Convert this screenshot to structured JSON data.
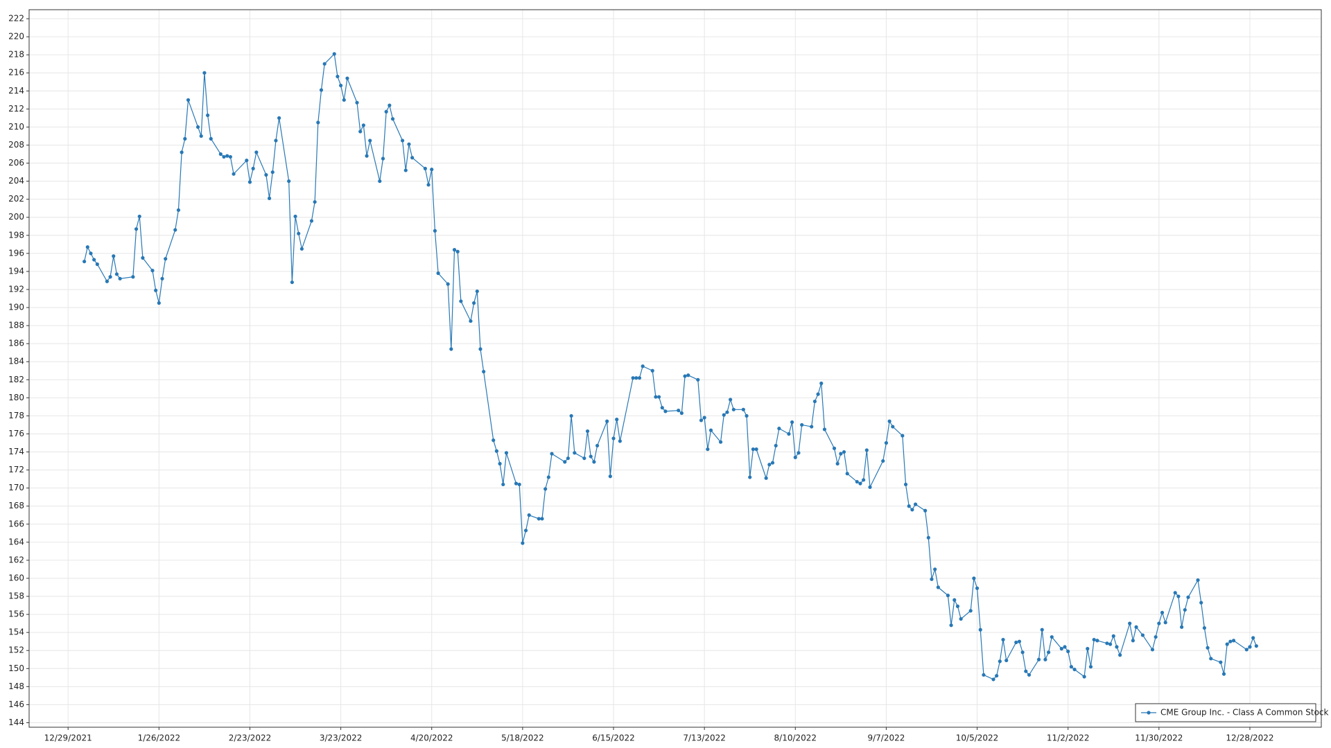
{
  "chart_data": {
    "type": "line",
    "x": [
      "1/3/2022",
      "1/4/2022",
      "1/5/2022",
      "1/6/2022",
      "1/7/2022",
      "1/10/2022",
      "1/11/2022",
      "1/12/2022",
      "1/13/2022",
      "1/14/2022",
      "1/18/2022",
      "1/19/2022",
      "1/20/2022",
      "1/21/2022",
      "1/24/2022",
      "1/25/2022",
      "1/26/2022",
      "1/27/2022",
      "1/28/2022",
      "1/31/2022",
      "2/1/2022",
      "2/2/2022",
      "2/3/2022",
      "2/4/2022",
      "2/7/2022",
      "2/8/2022",
      "2/9/2022",
      "2/10/2022",
      "2/11/2022",
      "2/14/2022",
      "2/15/2022",
      "2/16/2022",
      "2/17/2022",
      "2/18/2022",
      "2/22/2022",
      "2/23/2022",
      "2/24/2022",
      "2/25/2022",
      "2/28/2022",
      "3/1/2022",
      "3/2/2022",
      "3/3/2022",
      "3/4/2022",
      "3/7/2022",
      "3/8/2022",
      "3/9/2022",
      "3/10/2022",
      "3/11/2022",
      "3/14/2022",
      "3/15/2022",
      "3/16/2022",
      "3/17/2022",
      "3/18/2022",
      "3/21/2022",
      "3/22/2022",
      "3/23/2022",
      "3/24/2022",
      "3/25/2022",
      "3/28/2022",
      "3/29/2022",
      "3/30/2022",
      "3/31/2022",
      "4/1/2022",
      "4/4/2022",
      "4/5/2022",
      "4/6/2022",
      "4/7/2022",
      "4/8/2022",
      "4/11/2022",
      "4/12/2022",
      "4/13/2022",
      "4/14/2022",
      "4/18/2022",
      "4/19/2022",
      "4/20/2022",
      "4/21/2022",
      "4/22/2022",
      "4/25/2022",
      "4/26/2022",
      "4/27/2022",
      "4/28/2022",
      "4/29/2022",
      "5/2/2022",
      "5/3/2022",
      "5/4/2022",
      "5/5/2022",
      "5/6/2022",
      "5/9/2022",
      "5/10/2022",
      "5/11/2022",
      "5/12/2022",
      "5/13/2022",
      "5/16/2022",
      "5/17/2022",
      "5/18/2022",
      "5/19/2022",
      "5/20/2022",
      "5/23/2022",
      "5/24/2022",
      "5/25/2022",
      "5/26/2022",
      "5/27/2022",
      "5/31/2022",
      "6/1/2022",
      "6/2/2022",
      "6/3/2022",
      "6/6/2022",
      "6/7/2022",
      "6/8/2022",
      "6/9/2022",
      "6/10/2022",
      "6/13/2022",
      "6/14/2022",
      "6/15/2022",
      "6/16/2022",
      "6/17/2022",
      "6/21/2022",
      "6/22/2022",
      "6/23/2022",
      "6/24/2022",
      "6/27/2022",
      "6/28/2022",
      "6/29/2022",
      "6/30/2022",
      "7/1/2022",
      "7/5/2022",
      "7/6/2022",
      "7/7/2022",
      "7/8/2022",
      "7/11/2022",
      "7/12/2022",
      "7/13/2022",
      "7/14/2022",
      "7/15/2022",
      "7/18/2022",
      "7/19/2022",
      "7/20/2022",
      "7/21/2022",
      "7/22/2022",
      "7/25/2022",
      "7/26/2022",
      "7/27/2022",
      "7/28/2022",
      "7/29/2022",
      "8/1/2022",
      "8/2/2022",
      "8/3/2022",
      "8/4/2022",
      "8/5/2022",
      "8/8/2022",
      "8/9/2022",
      "8/10/2022",
      "8/11/2022",
      "8/12/2022",
      "8/15/2022",
      "8/16/2022",
      "8/17/2022",
      "8/18/2022",
      "8/19/2022",
      "8/22/2022",
      "8/23/2022",
      "8/24/2022",
      "8/25/2022",
      "8/26/2022",
      "8/29/2022",
      "8/30/2022",
      "8/31/2022",
      "9/1/2022",
      "9/2/2022",
      "9/6/2022",
      "9/7/2022",
      "9/8/2022",
      "9/9/2022",
      "9/12/2022",
      "9/13/2022",
      "9/14/2022",
      "9/15/2022",
      "9/16/2022",
      "9/19/2022",
      "9/20/2022",
      "9/21/2022",
      "9/22/2022",
      "9/23/2022",
      "9/26/2022",
      "9/27/2022",
      "9/28/2022",
      "9/29/2022",
      "9/30/2022",
      "10/3/2022",
      "10/4/2022",
      "10/5/2022",
      "10/6/2022",
      "10/7/2022",
      "10/10/2022",
      "10/11/2022",
      "10/12/2022",
      "10/13/2022",
      "10/14/2022",
      "10/17/2022",
      "10/18/2022",
      "10/19/2022",
      "10/20/2022",
      "10/21/2022",
      "10/24/2022",
      "10/25/2022",
      "10/26/2022",
      "10/27/2022",
      "10/28/2022",
      "10/31/2022",
      "11/1/2022",
      "11/2/2022",
      "11/3/2022",
      "11/4/2022",
      "11/7/2022",
      "11/8/2022",
      "11/9/2022",
      "11/10/2022",
      "11/11/2022",
      "11/14/2022",
      "11/15/2022",
      "11/16/2022",
      "11/17/2022",
      "11/18/2022",
      "11/21/2022",
      "11/22/2022",
      "11/23/2022",
      "11/25/2022",
      "11/28/2022",
      "11/29/2022",
      "11/30/2022",
      "12/1/2022",
      "12/2/2022",
      "12/5/2022",
      "12/6/2022",
      "12/7/2022",
      "12/8/2022",
      "12/9/2022",
      "12/12/2022",
      "12/13/2022",
      "12/14/2022",
      "12/15/2022",
      "12/16/2022",
      "12/19/2022",
      "12/20/2022",
      "12/21/2022",
      "12/22/2022",
      "12/23/2022",
      "12/27/2022",
      "12/28/2022",
      "12/29/2022",
      "12/30/2022"
    ],
    "series": [
      {
        "name": "CME Group Inc. - Class A Common Stock",
        "color": "#2878b5",
        "values": [
          195.1,
          196.7,
          196.0,
          195.3,
          194.8,
          192.9,
          193.4,
          195.7,
          193.7,
          193.2,
          193.4,
          198.7,
          200.1,
          195.5,
          194.1,
          191.9,
          190.5,
          193.2,
          195.4,
          198.6,
          200.8,
          207.2,
          208.7,
          213.0,
          210.0,
          209.0,
          216.0,
          211.3,
          208.7,
          207.0,
          206.7,
          206.8,
          206.7,
          204.8,
          206.3,
          203.9,
          205.4,
          207.2,
          204.7,
          202.1,
          205.0,
          208.5,
          211.0,
          204.0,
          192.8,
          200.1,
          198.2,
          196.5,
          199.6,
          201.7,
          210.5,
          214.1,
          217.0,
          218.1,
          215.6,
          214.6,
          213.0,
          215.4,
          212.7,
          209.5,
          210.2,
          206.8,
          208.5,
          204.0,
          206.5,
          211.7,
          212.4,
          210.9,
          208.5,
          205.2,
          208.1,
          206.6,
          205.4,
          203.6,
          205.3,
          198.5,
          193.8,
          192.6,
          185.4,
          196.4,
          196.2,
          190.7,
          188.5,
          190.5,
          191.8,
          185.4,
          182.9,
          175.3,
          174.1,
          172.7,
          170.4,
          173.9,
          170.5,
          170.4,
          163.9,
          165.3,
          167.0,
          166.6,
          166.6,
          169.9,
          171.2,
          173.8,
          172.9,
          173.3,
          178.0,
          173.9,
          173.3,
          176.3,
          173.5,
          172.9,
          174.7,
          177.4,
          171.3,
          175.5,
          177.6,
          175.2,
          182.2,
          182.2,
          182.2,
          183.5,
          183.0,
          180.1,
          180.1,
          178.9,
          178.5,
          178.6,
          178.3,
          182.4,
          182.5,
          182.0,
          177.5,
          177.8,
          174.3,
          176.4,
          175.1,
          178.1,
          178.4,
          179.8,
          178.7,
          178.7,
          178.0,
          171.2,
          174.3,
          174.3,
          171.1,
          172.6,
          172.8,
          174.7,
          176.6,
          176.0,
          177.3,
          173.4,
          173.9,
          177.0,
          176.8,
          179.6,
          180.4,
          181.6,
          176.5,
          174.4,
          172.7,
          173.8,
          174.0,
          171.6,
          170.7,
          170.5,
          170.9,
          174.2,
          170.1,
          173.0,
          175.0,
          177.4,
          176.8,
          175.8,
          170.4,
          168.0,
          167.6,
          168.2,
          167.5,
          164.5,
          159.9,
          161.0,
          159.0,
          158.1,
          154.8,
          157.6,
          156.9,
          155.5,
          156.4,
          160.0,
          158.9,
          154.3,
          149.3,
          148.8,
          149.2,
          150.8,
          153.2,
          150.9,
          152.9,
          153.0,
          151.8,
          149.7,
          149.3,
          151.0,
          154.3,
          151.0,
          151.8,
          153.5,
          152.2,
          152.4,
          151.9,
          150.2,
          149.9,
          149.1,
          152.2,
          150.2,
          153.2,
          153.1,
          152.8,
          152.7,
          153.6,
          152.4,
          151.5,
          155.0,
          153.1,
          154.6,
          153.7,
          152.1,
          153.5,
          155.0,
          156.2,
          155.1,
          158.4,
          158.0,
          154.6,
          156.5,
          157.9,
          159.8,
          157.3,
          154.5,
          152.3,
          151.1,
          150.7,
          149.4,
          152.7,
          153.0,
          153.1,
          152.1,
          152.4,
          153.4,
          152.5
        ]
      }
    ],
    "xlim": [
      "12/17/2021",
      "1/19/2023"
    ],
    "xticks": [
      "12/29/2021",
      "1/26/2022",
      "2/23/2022",
      "3/23/2022",
      "4/20/2022",
      "5/18/2022",
      "6/15/2022",
      "7/13/2022",
      "8/10/2022",
      "9/7/2022",
      "10/5/2022",
      "11/2/2022",
      "11/30/2022",
      "12/28/2022"
    ],
    "ylim": [
      143.5,
      223
    ],
    "yticks": [
      144,
      146,
      148,
      150,
      152,
      154,
      156,
      158,
      160,
      162,
      164,
      166,
      168,
      170,
      172,
      174,
      176,
      178,
      180,
      182,
      184,
      186,
      188,
      190,
      192,
      194,
      196,
      198,
      200,
      202,
      204,
      206,
      208,
      210,
      212,
      214,
      216,
      218,
      220,
      222
    ],
    "grid": true,
    "markers": true,
    "legend": "lower right"
  }
}
